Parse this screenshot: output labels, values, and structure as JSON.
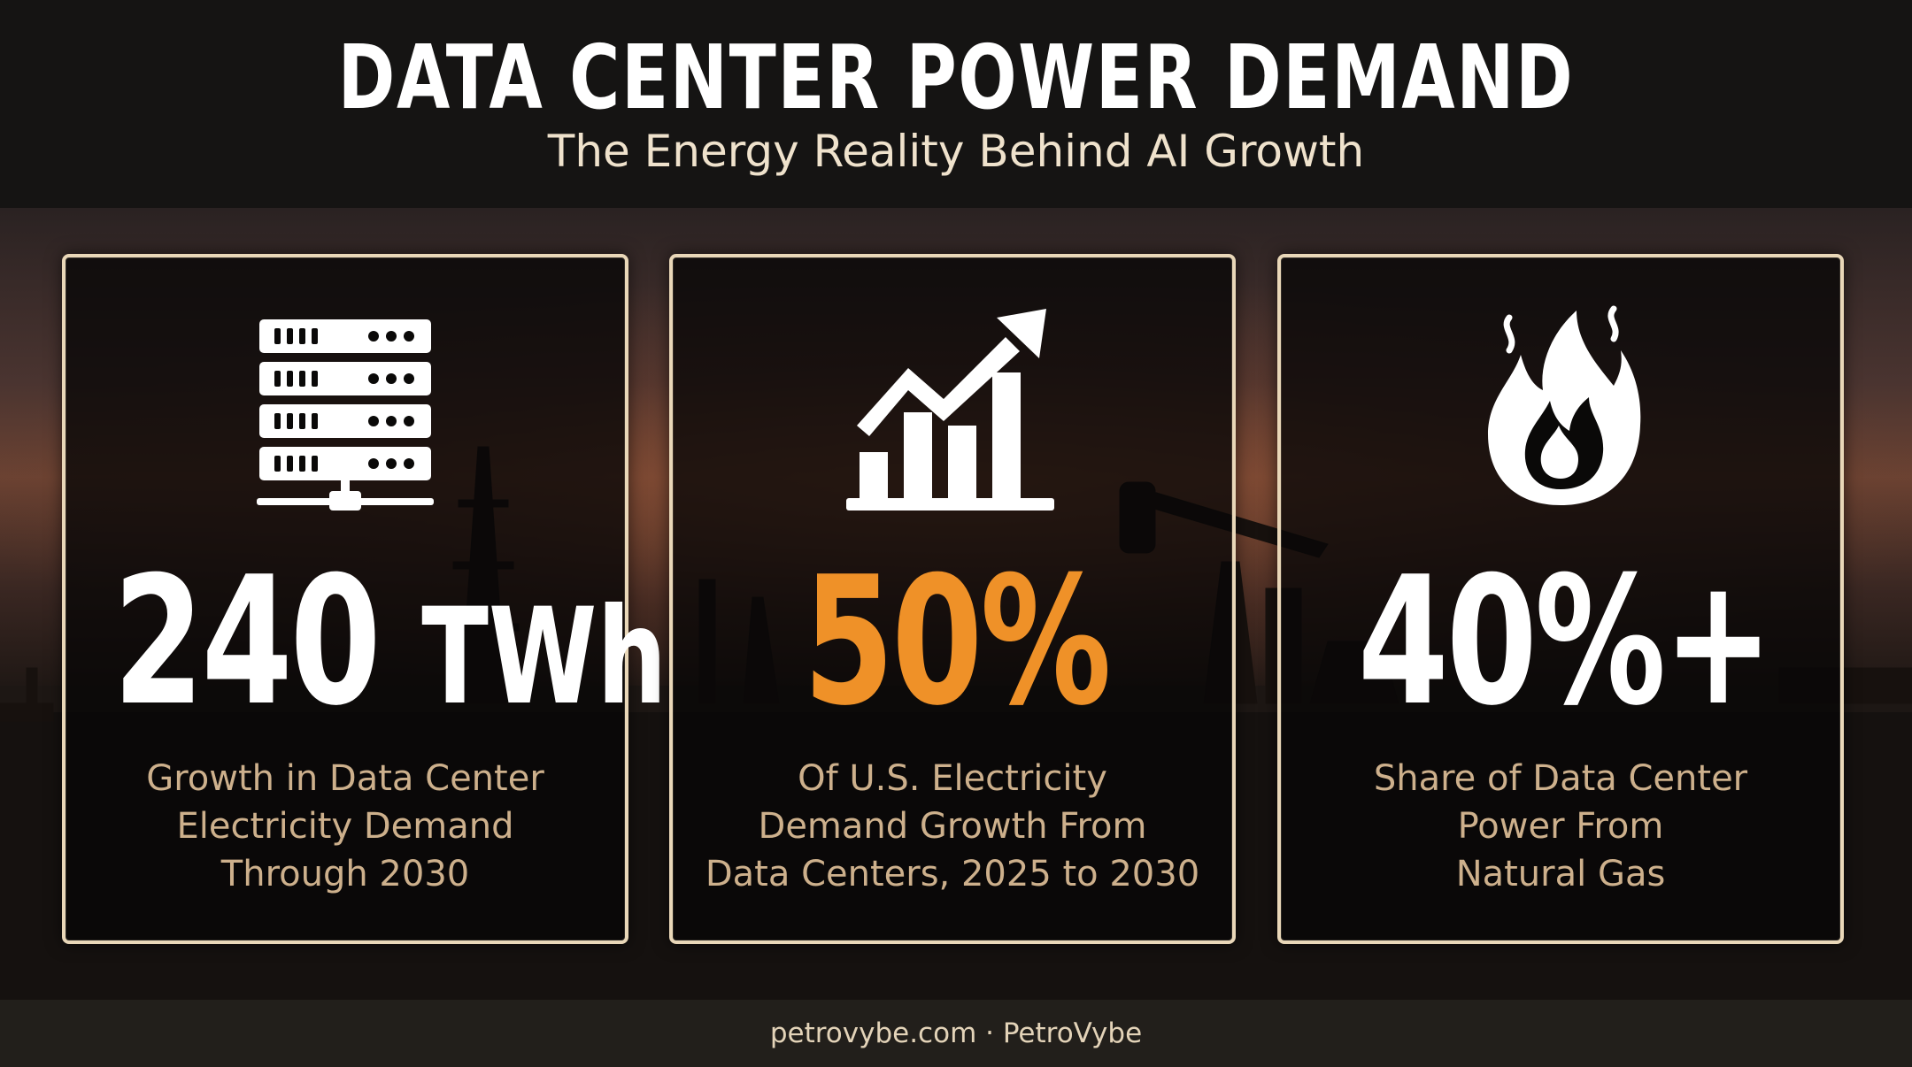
{
  "header": {
    "title": "DATA CENTER POWER DEMAND",
    "subtitle": "The Energy Reality Behind AI Growth"
  },
  "cards": [
    {
      "icon": "server-rack-icon",
      "value_number": "240",
      "value_unit": "TWh",
      "value_color": "#ffffff",
      "description_lines": [
        "Growth in Data Center",
        "Electricity Demand",
        "Through 2030"
      ]
    },
    {
      "icon": "growth-chart-icon",
      "value_number": "50%",
      "value_color": "#ef9128",
      "description_lines": [
        "Of U.S. Electricity",
        "Demand Growth From",
        "Data Centers, 2025 to 2030"
      ]
    },
    {
      "icon": "flame-icon",
      "value_number": "40%+",
      "value_color": "#ffffff",
      "description_lines": [
        "Share of Data Center",
        "Power From",
        "Natural Gas"
      ]
    }
  ],
  "footer": {
    "text": "petrovybe.com · PetroVybe"
  },
  "colors": {
    "accent": "#ef9128",
    "card_border": "#e9d7b8",
    "description": "#cdb08c",
    "subtitle": "#efe2cc"
  }
}
